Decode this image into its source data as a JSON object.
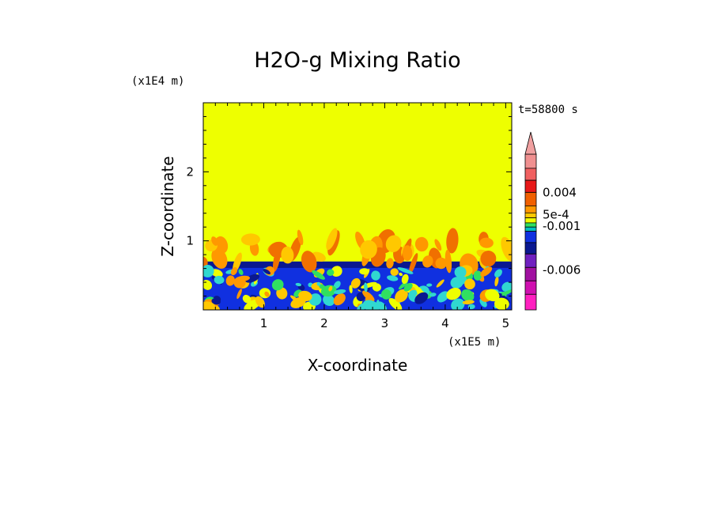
{
  "chart_data": {
    "type": "heatmap",
    "title": "H2O-g Mixing Ratio",
    "xlabel": "X-coordinate",
    "ylabel": "Z-coordinate",
    "x_scale_label": "(x1E5 m)",
    "z_scale_label": "(x1E4 m)",
    "time_label": "t=58800 s",
    "xlim": [
      0,
      5.1
    ],
    "ylim": [
      0,
      3.0
    ],
    "x_ticks": [
      1,
      2,
      3,
      4,
      5
    ],
    "x_tick_labels": [
      "1",
      "2",
      "3",
      "4",
      "5"
    ],
    "y_ticks": [
      1,
      2
    ],
    "y_tick_labels": [
      "1",
      "2"
    ],
    "fields": {
      "upper_layer": {
        "z_range": [
          0.7,
          3.0
        ],
        "color": "#eeff00"
      },
      "boundary_layer": {
        "z_range": [
          0,
          0.7
        ],
        "color": "#1030e0"
      },
      "transition_band_top": 1.05
    },
    "colorbar": {
      "levels": [
        {
          "color": "#f09090"
        },
        {
          "color": "#f06060"
        },
        {
          "color": "#e81818"
        },
        {
          "color": "#f06000"
        },
        {
          "color": "#ff9800"
        },
        {
          "color": "#ffc800"
        },
        {
          "color": "#eeff00"
        },
        {
          "color": "#30e060"
        },
        {
          "color": "#00c0c0"
        },
        {
          "color": "#1030e0"
        },
        {
          "color": "#0a1890"
        },
        {
          "color": "#7020c0"
        },
        {
          "color": "#a010a0"
        },
        {
          "color": "#d010b0"
        },
        {
          "color": "#ff20c0"
        }
      ],
      "labels": [
        "0.004",
        "5e-4",
        "-0.001",
        "-0.006"
      ],
      "extend_top": true,
      "extend_top_color": "#f0a0a0"
    },
    "colors": {
      "yellow": "#eeff00",
      "orange": "#ff9800",
      "darkorange": "#f07000",
      "gold": "#ffc800",
      "cyan": "#30d8d0",
      "green": "#30e060",
      "blue": "#1030e0",
      "navy": "#0a1890"
    }
  }
}
